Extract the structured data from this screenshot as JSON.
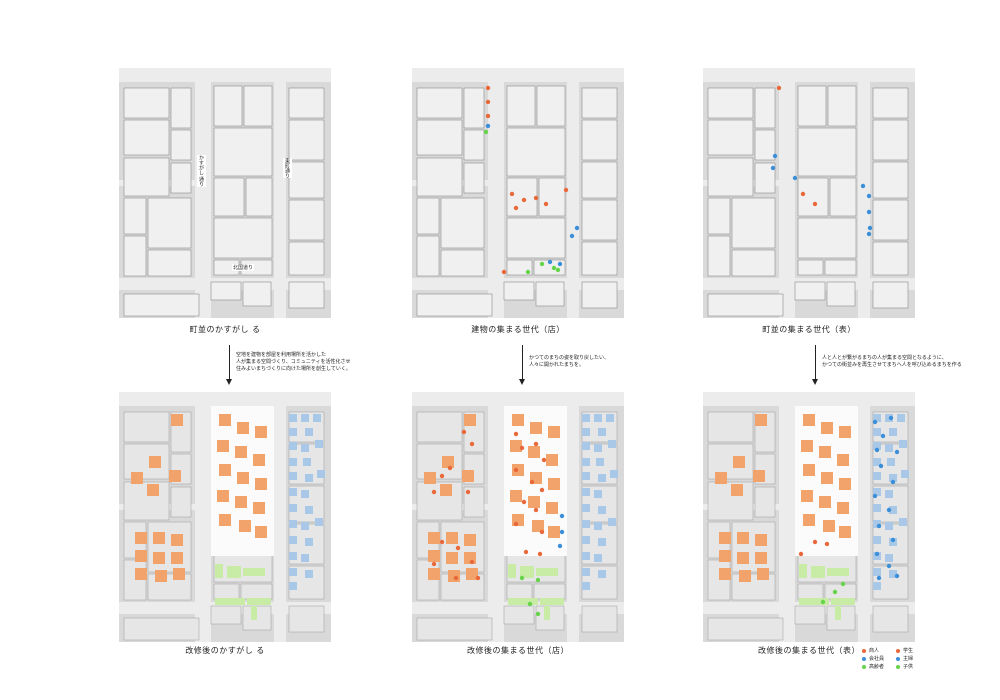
{
  "colors": {
    "building": "#f0f0f0",
    "ground": "#d9d9d9",
    "street": "#ececec",
    "orange": "#f2a36b",
    "blue": "#a9c8e8",
    "green": "#c8eba5",
    "dot_orange": "#e8683a",
    "dot_blue": "#3a8fd8",
    "dot_green": "#66d44a"
  },
  "top_captions": [
    "町並のかすがし  る",
    "建物の集まる世代（店）",
    "町並の集まる世代（表）"
  ],
  "bottom_captions": [
    "改修後のかすがし  る",
    "改修後の集まる世代（店）",
    "改修後の集まる世代（表）"
  ],
  "arrow_notes": [
    "空地を建物を部屋を利用場所を活かした\n人が集まる空間づくり、コミュニティを活性化させ\n住みよいまちづくりに向けた場所を創生していく。",
    "かつてのまちの姿を取り戻したい、\n人々に開かれたまちを。",
    "人と人とが繋がるまちの人が集まる空間となるように、\nかつての街並みを再生させてまちへ人を呼び込めるまちを作る"
  ],
  "street_labels": {
    "left_vertical": "かすがし  通り",
    "right_vertical": "東町通り",
    "bottom_horizontal": "北国道り"
  },
  "legend": [
    {
      "label": "商人",
      "color": "#e8683a"
    },
    {
      "label": "学生",
      "color": "#e8683a"
    },
    {
      "label": "会社員",
      "color": "#3a8fd8"
    },
    {
      "label": "主婦",
      "color": "#3a8fd8"
    },
    {
      "label": "高齢者",
      "color": "#66d44a"
    },
    {
      "label": "子供",
      "color": "#66d44a"
    }
  ]
}
